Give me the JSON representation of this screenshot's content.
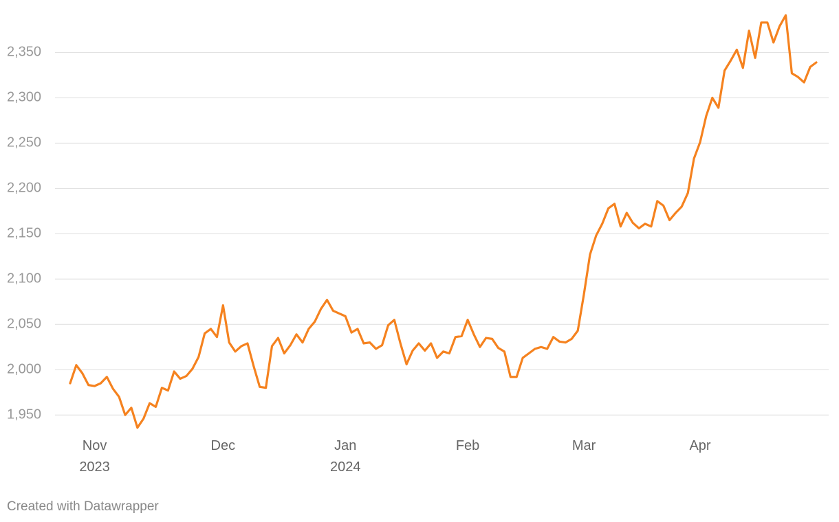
{
  "chart_data": {
    "type": "line",
    "footer": "Created with Datawrapper",
    "categories": [
      null,
      null,
      null,
      null,
      "Nov 2023",
      null,
      null,
      null,
      null,
      null,
      null,
      null,
      null,
      null,
      null,
      null,
      null,
      null,
      null,
      null,
      null,
      null,
      null,
      null,
      null,
      "Dec",
      null,
      null,
      null,
      null,
      null,
      null,
      null,
      null,
      null,
      null,
      null,
      null,
      null,
      null,
      null,
      null,
      null,
      null,
      null,
      "Jan 2024",
      null,
      null,
      null,
      null,
      null,
      null,
      null,
      null,
      null,
      null,
      null,
      null,
      null,
      null,
      null,
      null,
      null,
      null,
      null,
      "Feb",
      null,
      null,
      null,
      null,
      null,
      null,
      null,
      null,
      null,
      null,
      null,
      null,
      null,
      null,
      null,
      null,
      null,
      null,
      "Mar",
      null,
      null,
      null,
      null,
      null,
      null,
      null,
      null,
      null,
      null,
      null,
      null,
      null,
      null,
      null,
      null,
      null,
      null,
      "Apr",
      null,
      null,
      null,
      null,
      null,
      null,
      null,
      null,
      null,
      null,
      null,
      null,
      null,
      null,
      null,
      null,
      null,
      null,
      null
    ],
    "series": [
      {
        "color": "#f5821f",
        "values": [
          1985,
          2005,
          1996,
          1983,
          1982,
          1985,
          1992,
          1979,
          1970,
          1950,
          1958,
          1936,
          1946,
          1963,
          1959,
          1980,
          1977,
          1998,
          1990,
          1993,
          2001,
          2014,
          2040,
          2045,
          2036,
          2071,
          2030,
          2020,
          2026,
          2029,
          2004,
          1981,
          1980,
          2026,
          2035,
          2018,
          2027,
          2039,
          2030,
          2045,
          2053,
          2067,
          2077,
          2065,
          2062,
          2059,
          2041,
          2045,
          2029,
          2030,
          2023,
          2027,
          2049,
          2055,
          2029,
          2006,
          2021,
          2029,
          2021,
          2029,
          2013,
          2020,
          2018,
          2036,
          2037,
          2055,
          2039,
          2025,
          2035,
          2034,
          2024,
          2020,
          1992,
          1992,
          2013,
          2018,
          2023,
          2025,
          2023,
          2036,
          2031,
          2030,
          2034,
          2043,
          2083,
          2127,
          2148,
          2161,
          2178,
          2183,
          2158,
          2173,
          2162,
          2156,
          2161,
          2158,
          2186,
          2181,
          2165,
          2173,
          2180,
          2195,
          2233,
          2251,
          2280,
          2300,
          2289,
          2330,
          2341,
          2353,
          2333,
          2374,
          2344,
          2383,
          2383,
          2361,
          2379,
          2391,
          2327,
          2323,
          2317,
          2334,
          2339
        ]
      }
    ],
    "ylim": [
      1935,
      2395
    ],
    "yticks": [
      {
        "value": 1950,
        "label": "1,950"
      },
      {
        "value": 2000,
        "label": "2,000"
      },
      {
        "value": 2050,
        "label": "2,050"
      },
      {
        "value": 2100,
        "label": "2,100"
      },
      {
        "value": 2150,
        "label": "2,150"
      },
      {
        "value": 2200,
        "label": "2,200"
      },
      {
        "value": 2250,
        "label": "2,250"
      },
      {
        "value": 2300,
        "label": "2,300"
      },
      {
        "value": 2350,
        "label": "2,350"
      }
    ],
    "grid": true
  }
}
